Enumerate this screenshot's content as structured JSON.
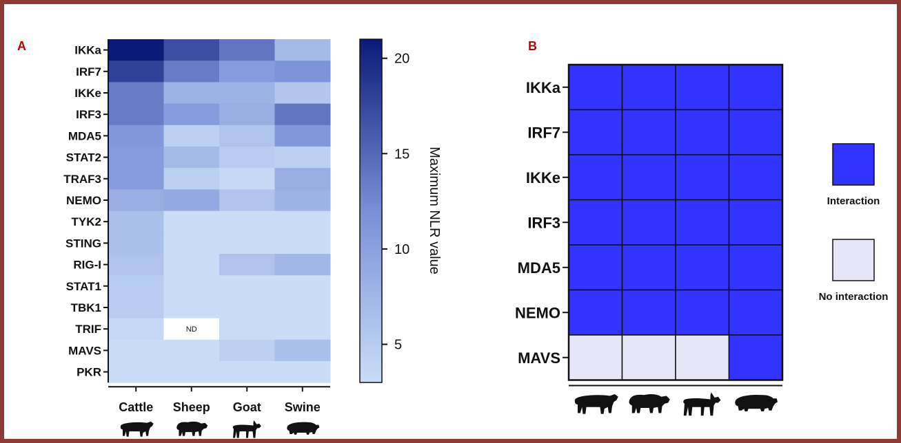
{
  "chart_data": [
    {
      "type": "heatmap",
      "panel_label": "A",
      "rows": [
        "IKKa",
        "IRF7",
        "IKKe",
        "IRF3",
        "MDA5",
        "STAT2",
        "TRAF3",
        "NEMO",
        "TYK2",
        "STING",
        "RIG-I",
        "STAT1",
        "TBK1",
        "TRIF",
        "MAVS",
        "PKR"
      ],
      "columns": [
        "Cattle",
        "Sheep",
        "Goat",
        "Swine"
      ],
      "values": [
        [
          21,
          17,
          14,
          7
        ],
        [
          18,
          13.5,
          10.5,
          11.5
        ],
        [
          13.5,
          8,
          8,
          5.5
        ],
        [
          13.5,
          10.5,
          8.5,
          14
        ],
        [
          11,
          4.5,
          6,
          11
        ],
        [
          10.5,
          7,
          5,
          4.5
        ],
        [
          10.5,
          4.5,
          3.5,
          8.5
        ],
        [
          8.5,
          9,
          6,
          8
        ],
        [
          6.5,
          3,
          3,
          3
        ],
        [
          6.5,
          3,
          3,
          3
        ],
        [
          6,
          3,
          6,
          7.5
        ],
        [
          5,
          3,
          3,
          3
        ],
        [
          5,
          3,
          3,
          3
        ],
        [
          3.5,
          null,
          3,
          3
        ],
        [
          3,
          3,
          4.5,
          6.5
        ],
        [
          3,
          3,
          3,
          3
        ]
      ],
      "missing_label": "ND",
      "colorbar": {
        "label": "Maximum NLR value",
        "ticks": [
          5,
          10,
          15,
          20
        ],
        "range": [
          3,
          21
        ],
        "color_low": "#c9ddf7",
        "color_high": "#0b1a78"
      }
    },
    {
      "type": "heatmap",
      "panel_label": "B",
      "rows": [
        "IKKa",
        "IRF7",
        "IKKe",
        "IRF3",
        "MDA5",
        "NEMO",
        "MAVS"
      ],
      "columns_icons": [
        "cattle-icon",
        "sheep-icon",
        "goat-icon",
        "swine-icon"
      ],
      "values": [
        [
          1,
          1,
          1,
          1
        ],
        [
          1,
          1,
          1,
          1
        ],
        [
          1,
          1,
          1,
          1
        ],
        [
          1,
          1,
          1,
          1
        ],
        [
          1,
          1,
          1,
          1
        ],
        [
          1,
          1,
          1,
          1
        ],
        [
          0,
          0,
          0,
          1
        ]
      ],
      "legend": [
        {
          "label": "Interaction",
          "color": "#3333ff"
        },
        {
          "label": "No interaction",
          "color": "#e6e6f7"
        }
      ]
    }
  ]
}
